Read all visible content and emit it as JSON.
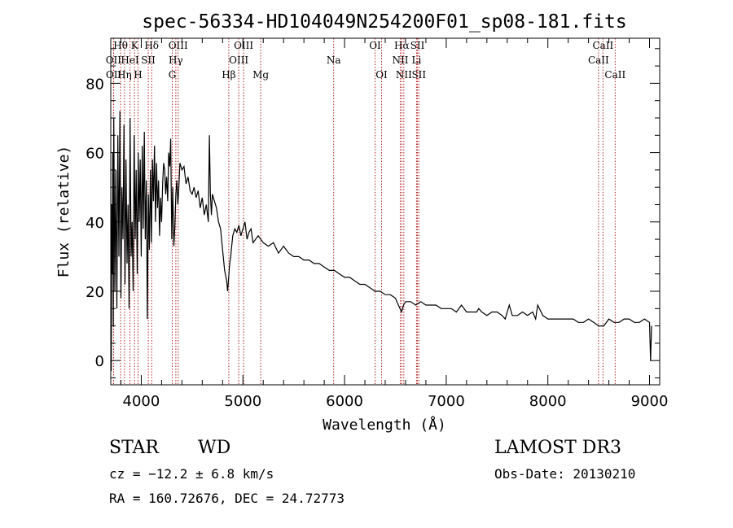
{
  "chart_data": {
    "type": "line",
    "title": "spec-56334-HD104049N254200F01_sp08-181.fits",
    "xlabel": "Wavelength (Å)",
    "ylabel": "Flux (relative)",
    "xlim": [
      3700,
      9100
    ],
    "ylim": [
      -7,
      93
    ],
    "x_ticks": [
      4000,
      5000,
      6000,
      7000,
      8000,
      9000
    ],
    "y_ticks": [
      0,
      20,
      40,
      60,
      80
    ],
    "series": [
      {
        "name": "flux",
        "x": [
          3700,
          3705,
          3710,
          3715,
          3720,
          3725,
          3730,
          3740,
          3750,
          3760,
          3770,
          3780,
          3790,
          3800,
          3810,
          3820,
          3830,
          3840,
          3850,
          3860,
          3870,
          3880,
          3890,
          3900,
          3910,
          3920,
          3930,
          3940,
          3950,
          3960,
          3970,
          3980,
          3990,
          4000,
          4010,
          4020,
          4030,
          4040,
          4050,
          4060,
          4070,
          4080,
          4090,
          4100,
          4110,
          4120,
          4130,
          4140,
          4150,
          4160,
          4170,
          4180,
          4190,
          4200,
          4210,
          4220,
          4230,
          4240,
          4250,
          4260,
          4270,
          4280,
          4290,
          4300,
          4310,
          4320,
          4330,
          4340,
          4350,
          4360,
          4370,
          4380,
          4390,
          4400,
          4420,
          4440,
          4460,
          4480,
          4500,
          4520,
          4540,
          4560,
          4580,
          4600,
          4620,
          4640,
          4660,
          4670,
          4680,
          4690,
          4700,
          4720,
          4740,
          4760,
          4780,
          4800,
          4820,
          4840,
          4850,
          4860,
          4870,
          4880,
          4890,
          4900,
          4920,
          4940,
          4960,
          4980,
          5000,
          5020,
          5040,
          5060,
          5080,
          5100,
          5150,
          5200,
          5250,
          5300,
          5350,
          5400,
          5450,
          5500,
          5550,
          5600,
          5650,
          5700,
          5750,
          5800,
          5850,
          5900,
          5950,
          6000,
          6050,
          6100,
          6150,
          6200,
          6250,
          6300,
          6350,
          6400,
          6450,
          6500,
          6530,
          6560,
          6580,
          6600,
          6650,
          6700,
          6750,
          6800,
          6850,
          6900,
          6950,
          7000,
          7050,
          7100,
          7150,
          7200,
          7250,
          7300,
          7320,
          7350,
          7400,
          7450,
          7500,
          7550,
          7580,
          7600,
          7620,
          7650,
          7700,
          7750,
          7800,
          7850,
          7880,
          7900,
          7950,
          8000,
          8050,
          8100,
          8150,
          8200,
          8250,
          8300,
          8350,
          8400,
          8450,
          8500,
          8550,
          8600,
          8650,
          8700,
          8750,
          8800,
          8850,
          8900,
          8950,
          9000,
          9010,
          9020
        ],
        "y": [
          0,
          -3,
          45,
          25,
          60,
          10,
          70,
          20,
          55,
          15,
          65,
          30,
          72,
          18,
          50,
          35,
          68,
          22,
          58,
          28,
          45,
          15,
          70,
          30,
          40,
          20,
          65,
          35,
          55,
          25,
          60,
          40,
          58,
          30,
          62,
          38,
          66,
          35,
          52,
          12,
          48,
          32,
          55,
          34,
          58,
          46,
          62,
          40,
          57,
          44,
          52,
          36,
          47,
          40,
          51,
          57,
          55,
          48,
          53,
          46,
          60,
          56,
          64,
          35,
          50,
          33,
          38,
          48,
          52,
          45,
          50,
          57,
          56,
          55,
          56,
          51,
          53,
          49,
          48,
          50,
          47,
          49,
          44,
          47,
          42,
          45,
          40,
          65,
          48,
          42,
          48,
          46,
          44,
          40,
          38,
          32,
          26,
          23,
          20,
          24,
          28,
          30,
          33,
          36,
          38,
          37,
          39,
          36,
          38,
          40,
          35,
          37,
          38,
          34,
          36,
          34,
          33,
          34,
          31,
          33,
          31,
          30,
          30,
          29,
          29,
          28,
          28,
          27,
          26,
          26,
          25,
          24,
          24,
          23,
          22,
          22,
          21,
          20,
          20,
          19,
          19,
          18,
          16,
          14,
          16,
          17,
          17,
          16,
          17,
          16,
          16,
          16,
          15,
          15,
          15,
          14,
          16,
          14,
          14,
          14,
          15,
          14,
          13,
          14,
          14,
          13,
          12,
          14,
          16,
          13,
          13,
          14,
          13,
          14,
          12,
          16,
          13,
          12,
          12,
          12,
          12,
          12,
          12,
          11,
          11,
          12,
          11,
          10,
          10,
          12,
          11,
          11,
          12,
          12,
          11,
          11,
          12,
          11,
          0,
          10
        ]
      }
    ],
    "spectral_lines": [
      {
        "label": "Hθ",
        "x": 3797,
        "row": 0
      },
      {
        "label": "OII",
        "x": 3727,
        "row": 1
      },
      {
        "label": "OII",
        "x": 3729,
        "row": 2
      },
      {
        "label": "K",
        "x": 3934,
        "row": 0
      },
      {
        "label": "HeI",
        "x": 3889,
        "row": 1
      },
      {
        "label": "Hη",
        "x": 3835,
        "row": 2
      },
      {
        "label": "SII",
        "x": 4069,
        "row": 1
      },
      {
        "label": "H",
        "x": 3968,
        "row": 2
      },
      {
        "label": "Hδ",
        "x": 4102,
        "row": 0
      },
      {
        "label": "OIII",
        "x": 4363,
        "row": 0
      },
      {
        "label": "Hγ",
        "x": 4340,
        "row": 1
      },
      {
        "label": "G",
        "x": 4305,
        "row": 2
      },
      {
        "label": "Hβ",
        "x": 4861,
        "row": 2
      },
      {
        "label": "OIII",
        "x": 5007,
        "row": 0
      },
      {
        "label": "OIII",
        "x": 4959,
        "row": 1
      },
      {
        "label": "Mg",
        "x": 5175,
        "row": 2
      },
      {
        "label": "Na",
        "x": 5893,
        "row": 1
      },
      {
        "label": "OI",
        "x": 6300,
        "row": 0
      },
      {
        "label": "OI",
        "x": 6364,
        "row": 2
      },
      {
        "label": "Hα",
        "x": 6563,
        "row": 0
      },
      {
        "label": "SII",
        "x": 6717,
        "row": 0
      },
      {
        "label": "NII",
        "x": 6548,
        "row": 1
      },
      {
        "label": "Li",
        "x": 6708,
        "row": 1
      },
      {
        "label": "NII",
        "x": 6583,
        "row": 2
      },
      {
        "label": "SII",
        "x": 6731,
        "row": 2
      },
      {
        "label": "CaII",
        "x": 8542,
        "row": 0
      },
      {
        "label": "CaII",
        "x": 8498,
        "row": 1
      },
      {
        "label": "CaII",
        "x": 8662,
        "row": 2
      }
    ]
  },
  "info": {
    "class_label": "STAR",
    "subclass_label": "WD",
    "survey": "LAMOST DR3",
    "cz": "cz = −12.2 ± 6.8 km/s",
    "obs_date": "Obs-Date: 20130210",
    "coords": "RA = 160.72676, DEC =  24.72773"
  },
  "colors": {
    "line": "#000000",
    "marker": "#b22222",
    "background": "#ffffff"
  }
}
